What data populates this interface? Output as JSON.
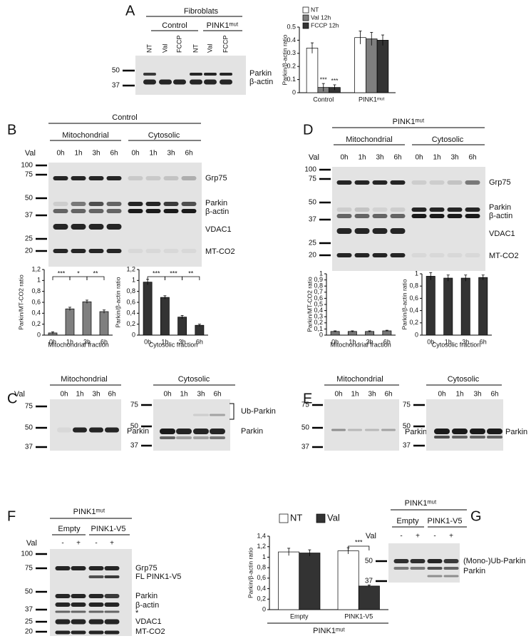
{
  "panels": [
    "A",
    "B",
    "C",
    "D",
    "E",
    "F",
    "G"
  ],
  "blots": [
    {
      "title": "Fibroblats",
      "groups": [
        "Control",
        "PINK1ᵐᵘᵗ"
      ],
      "lanes": [
        "NT",
        "Val",
        "FCCP",
        "NT",
        "Val",
        "FCCP"
      ],
      "markers": [
        50,
        37
      ],
      "bands": [
        "Parkin",
        "β-actin"
      ]
    },
    {
      "title": "Control",
      "groups": [
        "Mitochondrial",
        "Cytosolic"
      ],
      "side_label": "Val",
      "lanes": [
        "0h",
        "1h",
        "3h",
        "6h",
        "0h",
        "1h",
        "3h",
        "6h"
      ],
      "markers": [
        100,
        75,
        50,
        37,
        25,
        20
      ],
      "bands": [
        "Grp75",
        "Parkin",
        "β-actin",
        "VDAC1",
        "MT-CO2"
      ]
    },
    {
      "title": "PINK1ᵐᵘᵗ",
      "groups": [
        "Mitochondrial",
        "Cytosolic"
      ],
      "side_label": "Val",
      "lanes": [
        "0h",
        "1h",
        "3h",
        "6h",
        "0h",
        "1h",
        "3h",
        "6h"
      ],
      "markers": [
        100,
        75,
        50,
        37,
        25,
        20
      ],
      "bands": [
        "Grp75",
        "Parkin",
        "β-actin",
        "VDAC1",
        "MT-CO2"
      ]
    },
    {
      "title": "Mitochondrial",
      "side_label": "Val",
      "lanes": [
        "0h",
        "1h",
        "3h",
        "6h"
      ],
      "markers": [
        75,
        50,
        37
      ],
      "bands": [
        "Parkin"
      ]
    },
    {
      "title": "Cytosolic",
      "lanes": [
        "0h",
        "1h",
        "3h",
        "6h"
      ],
      "markers": [
        75,
        50,
        37
      ],
      "bands": [
        "Ub-Parkin",
        "Parkin"
      ]
    },
    {
      "title": "Mitochondrial",
      "lanes": [
        "0h",
        "1h",
        "3h",
        "6h"
      ],
      "markers": [
        75,
        50,
        37
      ],
      "bands": [
        "Parkin"
      ]
    },
    {
      "title": "Cytosolic",
      "lanes": [
        "0h",
        "1h",
        "3h",
        "6h"
      ],
      "markers": [
        75,
        50,
        37
      ],
      "bands": [
        "Parkin"
      ]
    },
    {
      "title": "PINK1ᵐᵘᵗ",
      "groups": [
        "Empty",
        "PINK1-V5"
      ],
      "side_label": "Val",
      "lanes": [
        "-",
        "+",
        "-",
        "+"
      ],
      "markers": [
        100,
        75,
        50,
        37,
        25,
        20
      ],
      "bands": [
        "Grp75",
        "FL PINK1-V5",
        "Parkin",
        "β-actin",
        "*",
        "VDAC1",
        "MT-CO2"
      ]
    },
    {
      "title": "PINK1ᵐᵘᵗ",
      "groups": [
        "Empty",
        "PINK1-V5"
      ],
      "side_label": "Val",
      "lanes": [
        "-",
        "+",
        "-",
        "+"
      ],
      "markers": [
        50,
        37
      ],
      "bands": [
        "(Mono-)Ub-Parkin",
        "Parkin"
      ]
    }
  ],
  "chart_data": [
    {
      "type": "bar",
      "y_label": "Parkin/β-actin ratio",
      "categories": [
        "Control",
        "PINK1ᵐᵘᵗ"
      ],
      "series": [
        {
          "name": "NT",
          "color": "#ffffff",
          "values": [
            0.34,
            0.42
          ],
          "errors": [
            0.04,
            0.05
          ]
        },
        {
          "name": "Val 12h",
          "color": "#7f7f7f",
          "values": [
            0.04,
            0.41
          ],
          "errors": [
            0.03,
            0.05
          ]
        },
        {
          "name": "FCCP 12h",
          "color": "#333333",
          "values": [
            0.04,
            0.4
          ],
          "errors": [
            0.02,
            0.04
          ]
        }
      ],
      "ylim": [
        0,
        0.5
      ],
      "yticks": [
        0,
        0.1,
        0.2,
        0.3,
        0.4,
        0.5
      ],
      "legend": "top-left",
      "annotations": [
        {
          "text": "***",
          "category": "Control",
          "series": "Val 12h"
        },
        {
          "text": "***",
          "category": "Control",
          "series": "FCCP 12h"
        }
      ]
    },
    {
      "type": "bar",
      "y_label": "Parkin/MT-CO2 ratio",
      "x_label": "Mitochondrial fraction",
      "categories": [
        "0h",
        "1h",
        "3h",
        "6h"
      ],
      "values": [
        0.04,
        0.48,
        0.61,
        0.43
      ],
      "errors": [
        0.02,
        0.03,
        0.03,
        0.03
      ],
      "color": "#7f7f7f",
      "ylim": [
        0,
        1.2
      ],
      "yticks": [
        0,
        {
          "value": 0.2,
          "label": "0,2"
        },
        {
          "value": 0.4,
          "label": "0,4"
        },
        {
          "value": 0.6,
          "label": "0,6"
        },
        {
          "value": 0.8,
          "label": "0,8"
        },
        1,
        {
          "value": 1.2,
          "label": "1,2"
        }
      ],
      "annotations": [
        {
          "text": "***",
          "between": [
            "0h",
            "1h"
          ]
        },
        {
          "text": "*",
          "between": [
            "1h",
            "3h"
          ]
        },
        {
          "text": "**",
          "between": [
            "3h",
            "6h"
          ]
        }
      ]
    },
    {
      "type": "bar",
      "y_label": "Parkin/β-actin ratio",
      "x_label": "Cytosolic fraction",
      "categories": [
        "0h",
        "1h",
        "3h",
        "6h"
      ],
      "values": [
        0.97,
        0.69,
        0.33,
        0.18
      ],
      "errors": [
        0.05,
        0.03,
        0.03,
        0.02
      ],
      "color": "#333333",
      "ylim": [
        0,
        1.2
      ],
      "yticks": [
        0,
        {
          "value": 0.2,
          "label": "0,2"
        },
        {
          "value": 0.4,
          "label": "0,4"
        },
        {
          "value": 0.6,
          "label": "0,6"
        },
        {
          "value": 0.8,
          "label": "0,8"
        },
        1,
        {
          "value": 1.2,
          "label": "1,2"
        }
      ],
      "annotations": [
        {
          "text": "***",
          "between": [
            "0h",
            "1h"
          ]
        },
        {
          "text": "***",
          "between": [
            "1h",
            "3h"
          ]
        },
        {
          "text": "**",
          "between": [
            "3h",
            "6h"
          ]
        }
      ]
    },
    {
      "type": "bar",
      "y_label": "Parkin/MT-CO2 ratio",
      "x_label": "Mitochondrial fraction",
      "categories": [
        "0h",
        "1h",
        "3h",
        "6h"
      ],
      "values": [
        0.06,
        0.06,
        0.06,
        0.07
      ],
      "errors": [
        0.01,
        0.01,
        0.01,
        0.01
      ],
      "color": "#777777",
      "ylim": [
        0,
        1
      ],
      "yticks": [
        0,
        {
          "value": 0.1,
          "label": "0,1"
        },
        {
          "value": 0.2,
          "label": "0,2"
        },
        {
          "value": 0.3,
          "label": "0,3"
        },
        {
          "value": 0.4,
          "label": "0,4"
        },
        {
          "value": 0.5,
          "label": "0,5"
        },
        {
          "value": 0.6,
          "label": "0,6"
        },
        {
          "value": 0.7,
          "label": "0,7"
        },
        {
          "value": 0.8,
          "label": "0,8"
        },
        {
          "value": 0.9,
          "label": "0,9"
        },
        1
      ]
    },
    {
      "type": "bar",
      "y_label": "Parkin/β-actin ratio",
      "x_label": "Cytosolic fraction",
      "categories": [
        "0h",
        "1h",
        "3h",
        "6h"
      ],
      "values": [
        0.96,
        0.93,
        0.93,
        0.94
      ],
      "errors": [
        0.06,
        0.05,
        0.05,
        0.04
      ],
      "color": "#333333",
      "ylim": [
        0,
        1
      ],
      "yticks": [
        0,
        {
          "value": 0.2,
          "label": "0,2"
        },
        {
          "value": 0.4,
          "label": "0,4"
        },
        {
          "value": 0.6,
          "label": "0,6"
        },
        {
          "value": 0.8,
          "label": "0,8"
        },
        1
      ]
    },
    {
      "type": "bar",
      "y_label": "Parkin/β-actin ratio",
      "categories": [
        "Empty",
        "PINK1-V5"
      ],
      "group_label": "PINK1ᵐᵘᵗ",
      "series": [
        {
          "name": "NT",
          "color": "#ffffff",
          "values": [
            1.1,
            1.12
          ],
          "errors": [
            0.07,
            0.06
          ]
        },
        {
          "name": "Val",
          "color": "#333333",
          "values": [
            1.08,
            0.45
          ],
          "errors": [
            0.06,
            0.02
          ]
        }
      ],
      "ylim": [
        0,
        1.4
      ],
      "yticks": [
        0,
        {
          "value": 0.2,
          "label": "0,2"
        },
        {
          "value": 0.4,
          "label": "0,4"
        },
        {
          "value": 0.6,
          "label": "0,6"
        },
        {
          "value": 0.8,
          "label": "0,8"
        },
        1,
        {
          "value": 1.2,
          "label": "1,2"
        },
        {
          "value": 1.4,
          "label": "1,4"
        }
      ],
      "legend": "top",
      "annotations": [
        {
          "text": "***",
          "category": "PINK1-V5"
        }
      ]
    }
  ]
}
